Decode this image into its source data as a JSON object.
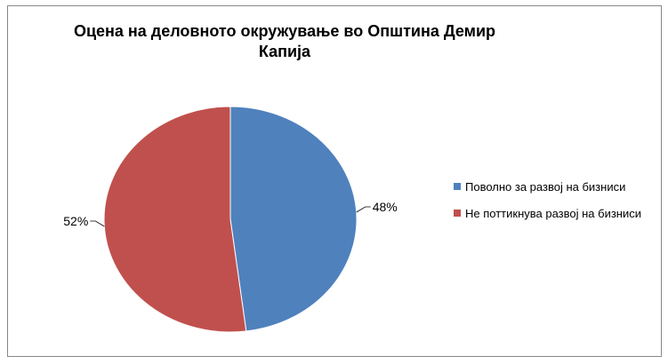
{
  "chart_data": {
    "type": "pie",
    "title": "Оцена на деловното окружување во Општина Демир Капија",
    "categories": [
      "Поволно за развој на бизниси",
      "Не поттикнува развој на бизниси"
    ],
    "values": [
      48,
      52
    ],
    "data_labels": [
      "48%",
      "52%"
    ],
    "colors": [
      "#4F81BD",
      "#C0504D"
    ],
    "legend_position": "right"
  }
}
